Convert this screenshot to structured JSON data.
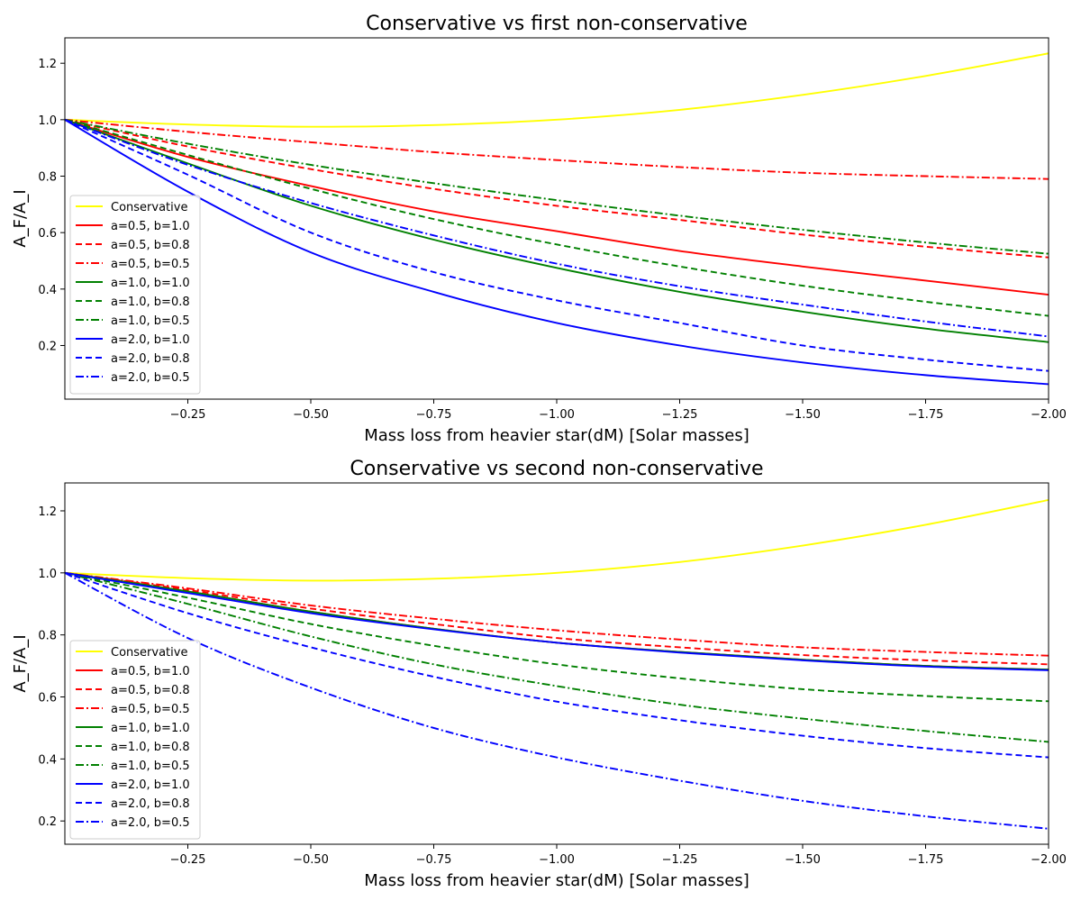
{
  "chart_data": [
    {
      "type": "line",
      "title": "Conservative vs first non-conservative",
      "xlabel": "Mass loss from heavier star(dM) [Solar masses]",
      "ylabel": "A_F/A_I",
      "xlim": [
        0.0,
        -2.0
      ],
      "ylim": [
        0.01,
        1.29
      ],
      "x_inverted": true,
      "x_ticks": [
        -0.25,
        -0.5,
        -0.75,
        -1.0,
        -1.25,
        -1.5,
        -1.75,
        -2.0
      ],
      "x_tick_labels": [
        "−0.25",
        "−0.50",
        "−0.75",
        "−1.00",
        "−1.25",
        "−1.50",
        "−1.75",
        "−2.00"
      ],
      "y_ticks": [
        0.2,
        0.4,
        0.6,
        0.8,
        1.0,
        1.2
      ],
      "y_tick_labels": [
        "0.2",
        "0.4",
        "0.6",
        "0.8",
        "1.0",
        "1.2"
      ],
      "grid": false,
      "legend_position": "lower-left",
      "x": [
        0.0,
        -0.25,
        -0.5,
        -0.75,
        -1.0,
        -1.25,
        -1.5,
        -1.75,
        -2.0
      ],
      "series": [
        {
          "name": "Conservative",
          "color": "#ffff00",
          "style": "solid",
          "values": [
            1.0,
            0.983,
            0.975,
            0.981,
            1.0,
            1.035,
            1.088,
            1.155,
            1.235
          ]
        },
        {
          "name": "a=0.5, b=1.0",
          "color": "#ff0000",
          "style": "solid",
          "values": [
            1.0,
            0.868,
            0.765,
            0.675,
            0.605,
            0.535,
            0.48,
            0.43,
            0.38
          ]
        },
        {
          "name": "a=0.5, b=0.8",
          "color": "#ff0000",
          "style": "dashed",
          "values": [
            1.0,
            0.905,
            0.825,
            0.755,
            0.695,
            0.645,
            0.593,
            0.55,
            0.512
          ]
        },
        {
          "name": "a=0.5, b=0.5",
          "color": "#ff0000",
          "style": "dashdot",
          "values": [
            1.0,
            0.957,
            0.92,
            0.885,
            0.857,
            0.832,
            0.812,
            0.8,
            0.79
          ]
        },
        {
          "name": "a=1.0, b=1.0",
          "color": "#008000",
          "style": "solid",
          "values": [
            1.0,
            0.845,
            0.695,
            0.575,
            0.475,
            0.39,
            0.32,
            0.26,
            0.212
          ]
        },
        {
          "name": "a=1.0, b=0.8",
          "color": "#008000",
          "style": "dashed",
          "values": [
            1.0,
            0.875,
            0.755,
            0.648,
            0.558,
            0.48,
            0.412,
            0.355,
            0.305
          ]
        },
        {
          "name": "a=1.0, b=0.5",
          "color": "#008000",
          "style": "dashdot",
          "values": [
            1.0,
            0.915,
            0.84,
            0.775,
            0.715,
            0.66,
            0.61,
            0.565,
            0.525
          ]
        },
        {
          "name": "a=2.0, b=1.0",
          "color": "#0000ff",
          "style": "solid",
          "values": [
            1.0,
            0.745,
            0.53,
            0.39,
            0.28,
            0.2,
            0.14,
            0.095,
            0.063
          ]
        },
        {
          "name": "a=2.0, b=0.8",
          "color": "#0000ff",
          "style": "dashed",
          "values": [
            1.0,
            0.805,
            0.6,
            0.46,
            0.36,
            0.28,
            0.2,
            0.15,
            0.11
          ]
        },
        {
          "name": "a=2.0, b=0.5",
          "color": "#0000ff",
          "style": "dashdot",
          "values": [
            1.0,
            0.84,
            0.705,
            0.59,
            0.49,
            0.41,
            0.345,
            0.285,
            0.232
          ]
        }
      ]
    },
    {
      "type": "line",
      "title": "Conservative vs second non-conservative",
      "xlabel": "Mass loss from heavier star(dM) [Solar masses]",
      "ylabel": "A_F/A_I",
      "xlim": [
        0.0,
        -2.0
      ],
      "ylim": [
        0.125,
        1.29
      ],
      "x_inverted": true,
      "x_ticks": [
        -0.25,
        -0.5,
        -0.75,
        -1.0,
        -1.25,
        -1.5,
        -1.75,
        -2.0
      ],
      "x_tick_labels": [
        "−0.25",
        "−0.50",
        "−0.75",
        "−1.00",
        "−1.25",
        "−1.50",
        "−1.75",
        "−2.00"
      ],
      "y_ticks": [
        0.2,
        0.4,
        0.6,
        0.8,
        1.0,
        1.2
      ],
      "y_tick_labels": [
        "0.2",
        "0.4",
        "0.6",
        "0.8",
        "1.0",
        "1.2"
      ],
      "grid": false,
      "legend_position": "lower-left",
      "x": [
        0.0,
        -0.25,
        -0.5,
        -0.75,
        -1.0,
        -1.25,
        -1.5,
        -1.75,
        -2.0
      ],
      "series": [
        {
          "name": "Conservative",
          "color": "#ffff00",
          "style": "solid",
          "values": [
            1.0,
            0.983,
            0.975,
            0.981,
            1.0,
            1.035,
            1.088,
            1.155,
            1.235
          ]
        },
        {
          "name": "a=0.5, b=1.0",
          "color": "#ff0000",
          "style": "solid",
          "values": [
            1.0,
            0.94,
            0.875,
            0.82,
            0.775,
            0.745,
            0.72,
            0.7,
            0.688
          ]
        },
        {
          "name": "a=0.5, b=0.8",
          "color": "#ff0000",
          "style": "dashed",
          "values": [
            1.0,
            0.945,
            0.885,
            0.835,
            0.79,
            0.76,
            0.735,
            0.718,
            0.705
          ]
        },
        {
          "name": "a=0.5, b=0.5",
          "color": "#ff0000",
          "style": "dashdot",
          "values": [
            1.0,
            0.95,
            0.895,
            0.852,
            0.815,
            0.785,
            0.76,
            0.745,
            0.733
          ]
        },
        {
          "name": "a=1.0, b=1.0",
          "color": "#008000",
          "style": "solid",
          "values": [
            1.0,
            0.94,
            0.875,
            0.82,
            0.775,
            0.745,
            0.72,
            0.7,
            0.688
          ]
        },
        {
          "name": "a=1.0, b=0.8",
          "color": "#008000",
          "style": "dashed",
          "values": [
            1.0,
            0.92,
            0.835,
            0.765,
            0.705,
            0.66,
            0.625,
            0.603,
            0.586
          ]
        },
        {
          "name": "a=1.0, b=0.5",
          "color": "#008000",
          "style": "dashdot",
          "values": [
            1.0,
            0.9,
            0.795,
            0.705,
            0.635,
            0.575,
            0.53,
            0.49,
            0.455
          ]
        },
        {
          "name": "a=2.0, b=1.0",
          "color": "#0000ff",
          "style": "solid",
          "values": [
            1.0,
            0.935,
            0.87,
            0.818,
            0.775,
            0.743,
            0.718,
            0.698,
            0.686
          ]
        },
        {
          "name": "a=2.0, b=0.8",
          "color": "#0000ff",
          "style": "dashed",
          "values": [
            1.0,
            0.87,
            0.76,
            0.665,
            0.585,
            0.525,
            0.475,
            0.435,
            0.405
          ]
        },
        {
          "name": "a=2.0, b=0.5",
          "color": "#0000ff",
          "style": "dashdot",
          "values": [
            1.0,
            0.79,
            0.63,
            0.5,
            0.405,
            0.33,
            0.265,
            0.215,
            0.175
          ]
        }
      ]
    }
  ]
}
